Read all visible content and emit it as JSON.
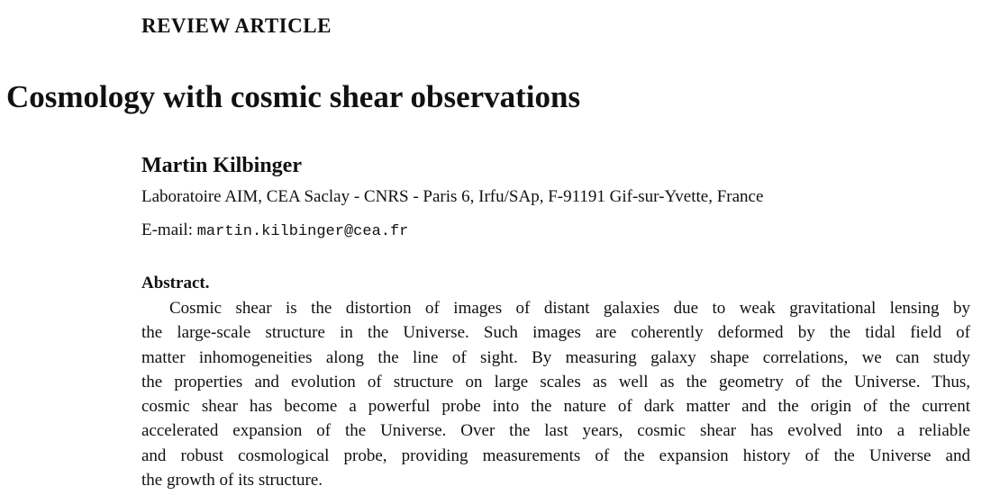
{
  "header": {
    "label": "REVIEW ARTICLE",
    "title": "Cosmology with cosmic shear observations"
  },
  "author": {
    "name": "Martin Kilbinger",
    "affiliation": "Laboratoire AIM, CEA Saclay - CNRS - Paris 6, Irfu/SAp, F-91191 Gif-sur-Yvette, France",
    "email_label": "E-mail:",
    "email": "martin.kilbinger@cea.fr"
  },
  "abstract": {
    "heading": "Abstract.",
    "lines": [
      "Cosmic shear is the distortion of images of distant galaxies due to weak gravitational lensing by",
      "the large-scale structure in the Universe. Such images are coherently deformed by the tidal field of",
      "matter inhomogeneities along the line of sight. By measuring galaxy shape correlations, we can study",
      "the properties and evolution of structure on large scales as well as the geometry of the Universe. Thus,",
      "cosmic shear has become a powerful probe into the nature of dark matter and the origin of the current",
      "accelerated expansion of the Universe. Over the last years, cosmic shear has evolved into a reliable",
      "and robust cosmological probe, providing measurements of the expansion history of the Universe and",
      "the growth of its structure."
    ]
  }
}
